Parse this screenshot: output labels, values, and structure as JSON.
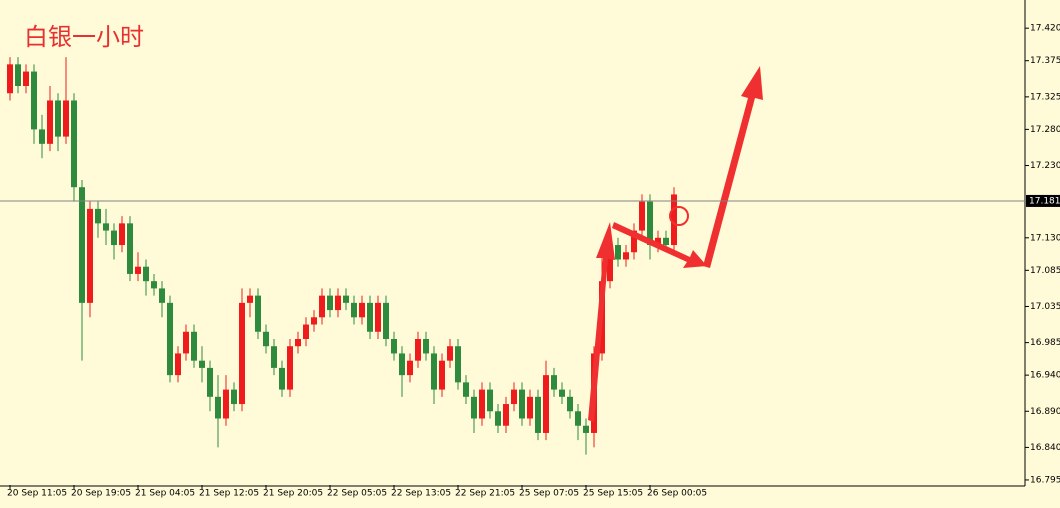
{
  "chart_data": {
    "type": "candlestick",
    "title": "白银一小时",
    "categories": [
      "20 Sep 11:05",
      null,
      null,
      null,
      null,
      null,
      null,
      null,
      "20 Sep 19:05",
      null,
      null,
      null,
      null,
      null,
      null,
      null,
      "21 Sep 04:05",
      null,
      null,
      null,
      null,
      null,
      null,
      null,
      "21 Sep 12:05",
      null,
      null,
      null,
      null,
      null,
      null,
      null,
      "21 Sep 20:05",
      null,
      null,
      null,
      null,
      null,
      null,
      null,
      "22 Sep 05:05",
      null,
      null,
      null,
      null,
      null,
      null,
      null,
      "22 Sep 13:05",
      null,
      null,
      null,
      null,
      null,
      null,
      null,
      "22 Sep 21:05",
      null,
      null,
      null,
      null,
      null,
      null,
      null,
      "25 Sep 07:05",
      null,
      null,
      null,
      null,
      null,
      null,
      null,
      "25 Sep 15:05",
      null,
      null,
      null,
      null,
      null,
      null,
      null,
      "26 Sep 00:05",
      null,
      null,
      null
    ],
    "ohlc": [
      [
        17.33,
        17.38,
        17.32,
        17.37
      ],
      [
        17.37,
        17.38,
        17.33,
        17.34
      ],
      [
        17.34,
        17.37,
        17.33,
        17.36
      ],
      [
        17.36,
        17.37,
        17.26,
        17.28
      ],
      [
        17.28,
        17.3,
        17.24,
        17.26
      ],
      [
        17.26,
        17.34,
        17.25,
        17.32
      ],
      [
        17.32,
        17.33,
        17.25,
        17.27
      ],
      [
        17.27,
        17.38,
        17.26,
        17.32
      ],
      [
        17.32,
        17.33,
        17.18,
        17.2
      ],
      [
        17.2,
        17.21,
        16.96,
        17.04
      ],
      [
        17.04,
        17.18,
        17.02,
        17.17
      ],
      [
        17.17,
        17.18,
        17.13,
        17.15
      ],
      [
        17.15,
        17.17,
        17.12,
        17.14
      ],
      [
        17.14,
        17.15,
        17.1,
        17.12
      ],
      [
        17.12,
        17.16,
        17.11,
        17.15
      ],
      [
        17.15,
        17.16,
        17.07,
        17.08
      ],
      [
        17.08,
        17.11,
        17.07,
        17.09
      ],
      [
        17.09,
        17.1,
        17.05,
        17.07
      ],
      [
        17.07,
        17.08,
        17.05,
        17.06
      ],
      [
        17.06,
        17.07,
        17.02,
        17.04
      ],
      [
        17.04,
        17.05,
        16.93,
        16.94
      ],
      [
        16.94,
        16.98,
        16.93,
        16.97
      ],
      [
        16.97,
        17.01,
        16.96,
        17.0
      ],
      [
        17.0,
        17.01,
        16.95,
        16.96
      ],
      [
        16.96,
        16.98,
        16.93,
        16.95
      ],
      [
        16.95,
        16.96,
        16.89,
        16.91
      ],
      [
        16.91,
        16.94,
        16.84,
        16.88
      ],
      [
        16.88,
        16.94,
        16.87,
        16.92
      ],
      [
        16.92,
        16.93,
        16.89,
        16.9
      ],
      [
        16.9,
        17.06,
        16.89,
        17.04
      ],
      [
        17.04,
        17.06,
        17.02,
        17.05
      ],
      [
        17.05,
        17.06,
        16.99,
        17.0
      ],
      [
        17.0,
        17.01,
        16.97,
        16.98
      ],
      [
        16.98,
        16.99,
        16.94,
        16.95
      ],
      [
        16.95,
        16.96,
        16.91,
        16.92
      ],
      [
        16.92,
        16.99,
        16.91,
        16.98
      ],
      [
        16.98,
        17.0,
        16.97,
        16.99
      ],
      [
        16.99,
        17.02,
        16.98,
        17.01
      ],
      [
        17.01,
        17.03,
        17.0,
        17.02
      ],
      [
        17.02,
        17.06,
        17.01,
        17.05
      ],
      [
        17.05,
        17.06,
        17.02,
        17.03
      ],
      [
        17.03,
        17.06,
        17.02,
        17.05
      ],
      [
        17.05,
        17.06,
        17.03,
        17.04
      ],
      [
        17.04,
        17.05,
        17.01,
        17.02
      ],
      [
        17.02,
        17.05,
        17.01,
        17.04
      ],
      [
        17.04,
        17.05,
        16.99,
        17.0
      ],
      [
        17.0,
        17.05,
        16.99,
        17.04
      ],
      [
        17.04,
        17.05,
        16.98,
        16.99
      ],
      [
        16.99,
        17.0,
        16.96,
        16.97
      ],
      [
        16.97,
        16.98,
        16.91,
        16.94
      ],
      [
        16.94,
        16.97,
        16.93,
        16.96
      ],
      [
        16.96,
        17.0,
        16.95,
        16.99
      ],
      [
        16.99,
        17.0,
        16.96,
        16.97
      ],
      [
        16.97,
        16.98,
        16.9,
        16.92
      ],
      [
        16.92,
        16.97,
        16.91,
        16.96
      ],
      [
        16.96,
        16.99,
        16.95,
        16.98
      ],
      [
        16.98,
        16.99,
        16.92,
        16.93
      ],
      [
        16.93,
        16.94,
        16.9,
        16.91
      ],
      [
        16.91,
        16.92,
        16.86,
        16.88
      ],
      [
        16.88,
        16.93,
        16.87,
        16.92
      ],
      [
        16.92,
        16.93,
        16.88,
        16.89
      ],
      [
        16.89,
        16.9,
        16.86,
        16.87
      ],
      [
        16.87,
        16.91,
        16.86,
        16.9
      ],
      [
        16.9,
        16.93,
        16.89,
        16.92
      ],
      [
        16.92,
        16.93,
        16.87,
        16.88
      ],
      [
        16.88,
        16.92,
        16.87,
        16.91
      ],
      [
        16.91,
        16.92,
        16.85,
        16.86
      ],
      [
        16.86,
        16.96,
        16.85,
        16.94
      ],
      [
        16.94,
        16.95,
        16.91,
        16.92
      ],
      [
        16.92,
        16.93,
        16.9,
        16.91
      ],
      [
        16.91,
        16.92,
        16.88,
        16.89
      ],
      [
        16.89,
        16.9,
        16.85,
        16.87
      ],
      [
        16.87,
        16.88,
        16.83,
        16.86
      ],
      [
        16.86,
        16.98,
        16.84,
        16.97
      ],
      [
        16.97,
        17.12,
        16.96,
        17.07
      ],
      [
        17.07,
        17.13,
        17.06,
        17.12
      ],
      [
        17.12,
        17.13,
        17.09,
        17.1
      ],
      [
        17.1,
        17.12,
        17.09,
        17.11
      ],
      [
        17.11,
        17.15,
        17.1,
        17.14
      ],
      [
        17.14,
        17.19,
        17.13,
        17.18
      ],
      [
        17.18,
        17.19,
        17.1,
        17.12
      ],
      [
        17.12,
        17.14,
        17.11,
        17.13
      ],
      [
        17.13,
        17.14,
        17.11,
        17.12
      ],
      [
        17.12,
        17.2,
        17.11,
        17.19
      ]
    ],
    "up_color": "#ee1c1c",
    "down_color": "#2e8b3e",
    "ylim": [
      16.788,
      17.459
    ],
    "yticks": [
      {
        "value": 17.42,
        "label": "17.420"
      },
      {
        "value": 17.375,
        "label": "17.375"
      },
      {
        "value": 17.325,
        "label": "17.325"
      },
      {
        "value": 17.28,
        "label": "17.280"
      },
      {
        "value": 17.23,
        "label": "17.230"
      },
      {
        "value": 17.13,
        "label": "17.130"
      },
      {
        "value": 17.085,
        "label": "17.085"
      },
      {
        "value": 17.035,
        "label": "17.035"
      },
      {
        "value": 16.985,
        "label": "16.985"
      },
      {
        "value": 16.94,
        "label": "16.940"
      },
      {
        "value": 16.89,
        "label": "16.890"
      },
      {
        "value": 16.84,
        "label": "16.840"
      },
      {
        "value": 16.795,
        "label": "16.795"
      }
    ],
    "current_price": 17.181
  }
}
